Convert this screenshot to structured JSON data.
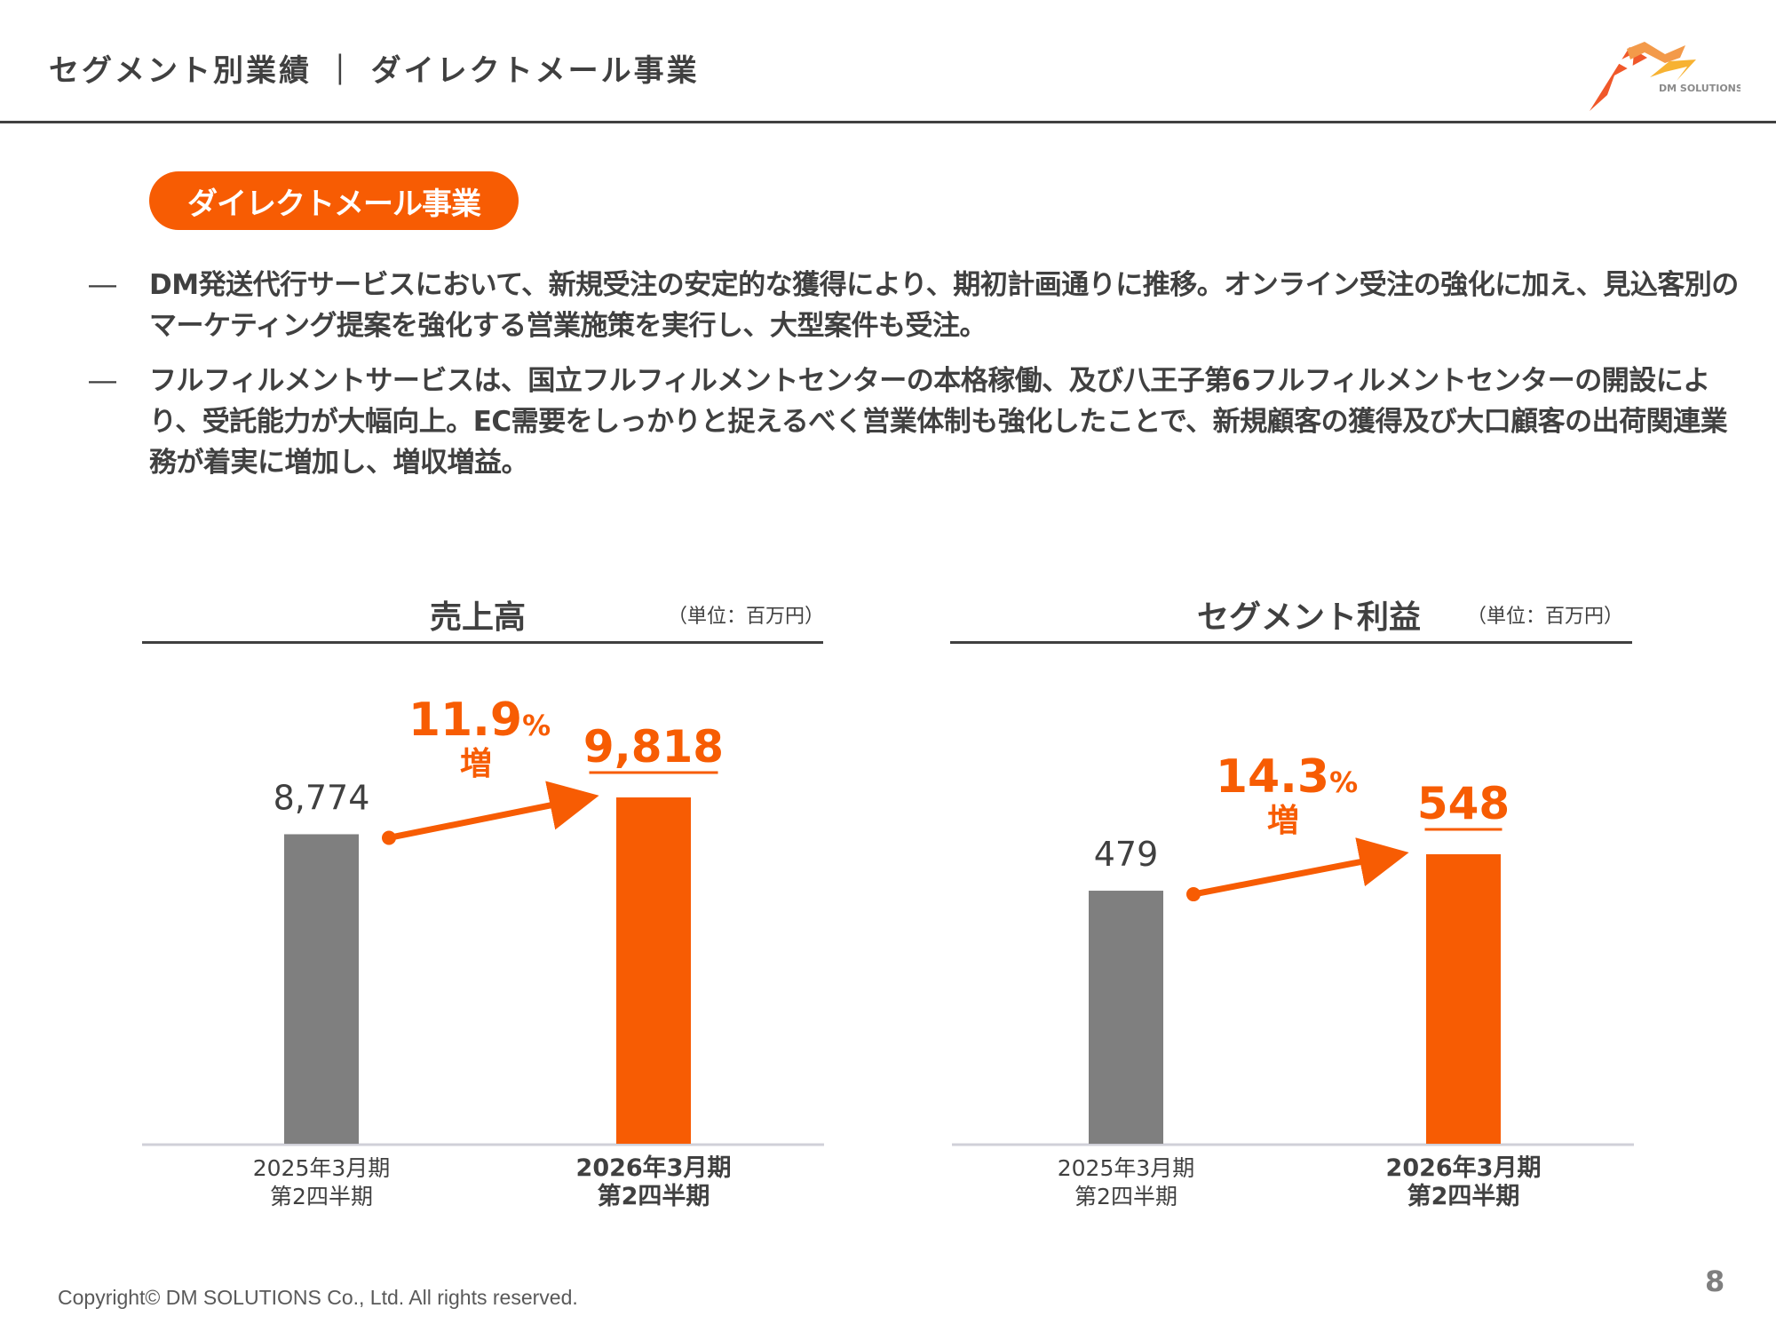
{
  "header": {
    "title": "セグメント別業績 ｜ ダイレクトメール事業",
    "logo_text": "DM SOLUTIONS"
  },
  "section_pill": "ダイレクトメール事業",
  "bullets": [
    {
      "dash": "―",
      "text": "DM発送代行サービスにおいて、新規受注の安定的な獲得により、期初計画通りに推移。オンライン受注の強化に加え、見込客別のマーケティング提案を強化する営業施策を実行し、大型案件も受注。"
    },
    {
      "dash": "―",
      "text": "フルフィルメントサービスは、国立フルフィルメントセンターの本格稼働、及び八王子第6フルフィルメントセンターの開設により、受託能力が大幅向上。EC需要をしっかりと捉えるべく営業体制も強化したことで、新規顧客の獲得及び大口顧客の出荷関連業務が着実に増加し、増収増益。"
    }
  ],
  "colors": {
    "accent": "#f75c03",
    "prior_bar": "#7f7f7f",
    "text": "#404040",
    "axis": "#d0d0d8"
  },
  "chart_data": [
    {
      "type": "bar",
      "title": "売上高",
      "unit_label": "（単位：百万円）",
      "categories": [
        [
          "2025年3月期",
          "第2四半期"
        ],
        [
          "2026年3月期",
          "第2四半期"
        ]
      ],
      "values": [
        8774,
        9818
      ],
      "value_labels": [
        "8,774",
        "9,818"
      ],
      "growth": {
        "value": "11.9",
        "suffix": "%",
        "label": "増"
      },
      "ylim": [
        0,
        9818
      ],
      "xlabel": "",
      "ylabel": "",
      "grid": false
    },
    {
      "type": "bar",
      "title": "セグメント利益",
      "unit_label": "（単位：百万円）",
      "categories": [
        [
          "2025年3月期",
          "第2四半期"
        ],
        [
          "2026年3月期",
          "第2四半期"
        ]
      ],
      "values": [
        479,
        548
      ],
      "value_labels": [
        "479",
        "548"
      ],
      "growth": {
        "value": "14.3",
        "suffix": "%",
        "label": "増"
      },
      "ylim": [
        0,
        548
      ],
      "xlabel": "",
      "ylabel": "",
      "grid": false
    }
  ],
  "footer": {
    "copyright": "Copyright© DM SOLUTIONS Co., Ltd. All rights reserved.",
    "page_number": "8"
  }
}
